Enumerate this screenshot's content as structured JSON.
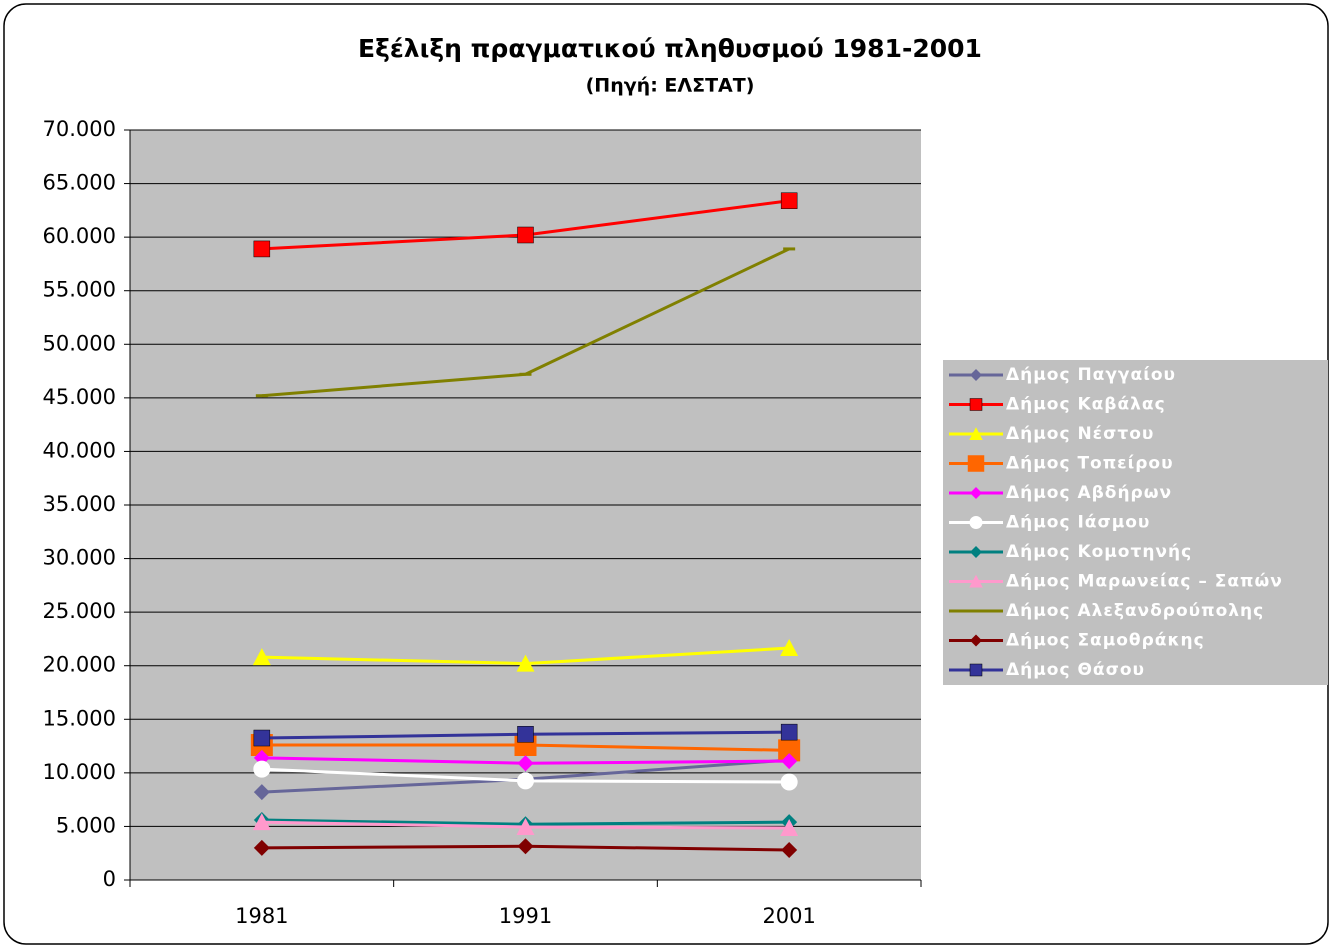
{
  "chart_data": {
    "type": "line",
    "title": "Εξέλιξη πραγματικού πληθυσμού 1981-2001",
    "subtitle": "(Πηγή: ΕΛΣΤΑΤ)",
    "categories": [
      "1981",
      "1991",
      "2001"
    ],
    "ylim": [
      0,
      70000
    ],
    "yticks": [
      0,
      {
        "value": 5000,
        "label": "5.000"
      },
      {
        "value": 10000,
        "label": "10.000"
      },
      {
        "value": 15000,
        "label": "15.000"
      },
      {
        "value": 20000,
        "label": "20.000"
      },
      {
        "value": 25000,
        "label": "25.000"
      },
      {
        "value": 30000,
        "label": "30.000"
      },
      {
        "value": 35000,
        "label": "35.000"
      },
      {
        "value": 40000,
        "label": "40.000"
      },
      {
        "value": 45000,
        "label": "45.000"
      },
      {
        "value": 50000,
        "label": "50.000"
      },
      {
        "value": 55000,
        "label": "55.000"
      },
      {
        "value": 60000,
        "label": "60.000"
      },
      {
        "value": 65000,
        "label": "65.000"
      },
      {
        "value": 70000,
        "label": "70.000"
      }
    ],
    "grid": true,
    "legend": "right",
    "plot_background": "#c0c0c0",
    "series": [
      {
        "name": "Δήμος Παγγαίου",
        "color": "#666699",
        "marker": "diamond",
        "values": [
          8200,
          9400,
          11200
        ]
      },
      {
        "name": "Δήμος Καβάλας",
        "color": "#ff0000",
        "marker": "square",
        "values": [
          58900,
          60200,
          63400
        ]
      },
      {
        "name": "Δήμος Νέστου",
        "color": "#ffff00",
        "marker": "triangle",
        "values": [
          20800,
          20200,
          21650
        ]
      },
      {
        "name": "Δήμος Τοπείρου",
        "color": "#ff6600",
        "marker": "bigsquare",
        "values": [
          12600,
          12600,
          12100
        ]
      },
      {
        "name": "Δήμος Αβδήρων",
        "color": "#ff00ff",
        "marker": "diamond",
        "values": [
          11400,
          10900,
          11100
        ]
      },
      {
        "name": "Δήμος Ιάσμου",
        "color": "#ffffff",
        "marker": "circle",
        "values": [
          10350,
          9250,
          9150
        ]
      },
      {
        "name": "Δήμος Κομοτηνής",
        "color": "#008080",
        "marker": "diamond",
        "values": [
          5600,
          5200,
          5400
        ]
      },
      {
        "name": "Δήμος Μαρωνείας – Σαπών",
        "color": "#ff99cc",
        "marker": "triangle",
        "values": [
          5400,
          4950,
          4850
        ]
      },
      {
        "name": "Δήμος Αλεξανδρούπολης",
        "color": "#808000",
        "marker": "dash",
        "values": [
          45200,
          47200,
          58900
        ]
      },
      {
        "name": "Δήμος Σαμοθράκης",
        "color": "#800000",
        "marker": "diamond",
        "values": [
          3000,
          3150,
          2800
        ]
      },
      {
        "name": "Δήμος Θάσου",
        "color": "#333399",
        "marker": "square",
        "values": [
          13250,
          13600,
          13800
        ]
      }
    ]
  }
}
